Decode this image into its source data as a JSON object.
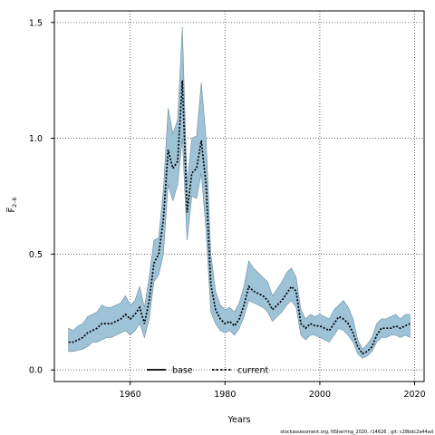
{
  "chart_data": {
    "type": "area",
    "xlabel": "Years",
    "ylabel": "F̅",
    "ylabel_subscript": "2–6",
    "credit": "stockassessment.org, NSherring_2020, r14626 , git: c28bdc2a44ad",
    "xlim": [
      1944,
      2022
    ],
    "ylim": [
      -0.05,
      1.55
    ],
    "x_ticks": [
      1960,
      1980,
      2000,
      2020
    ],
    "y_ticks": [
      0.0,
      0.5,
      1.0,
      1.5
    ],
    "y_tick_labels": [
      "0.0",
      "0.5",
      "1.0",
      "1.5"
    ],
    "grid": true,
    "band_color": "#9ec2d6",
    "band_edge_color": "#6a8ea3",
    "legend": {
      "placement": "bottom-center",
      "entries": [
        {
          "label": "base",
          "style": "solid"
        },
        {
          "label": "current",
          "style": "dashed"
        }
      ]
    },
    "x": [
      1947,
      1948,
      1949,
      1950,
      1951,
      1952,
      1953,
      1954,
      1955,
      1956,
      1957,
      1958,
      1959,
      1960,
      1961,
      1962,
      1963,
      1964,
      1965,
      1966,
      1967,
      1968,
      1969,
      1970,
      1971,
      1972,
      1973,
      1974,
      1975,
      1976,
      1977,
      1978,
      1979,
      1980,
      1981,
      1982,
      1983,
      1984,
      1985,
      1986,
      1987,
      1988,
      1989,
      1990,
      1991,
      1992,
      1993,
      1994,
      1995,
      1996,
      1997,
      1998,
      1999,
      2000,
      2001,
      2002,
      2003,
      2004,
      2005,
      2006,
      2007,
      2008,
      2009,
      2010,
      2011,
      2012,
      2013,
      2014,
      2015,
      2016,
      2017,
      2018,
      2019
    ],
    "series": [
      {
        "name": "current",
        "values": [
          0.12,
          0.12,
          0.13,
          0.14,
          0.16,
          0.17,
          0.18,
          0.2,
          0.2,
          0.2,
          0.21,
          0.22,
          0.24,
          0.22,
          0.24,
          0.27,
          0.2,
          0.3,
          0.46,
          0.5,
          0.65,
          0.95,
          0.87,
          0.9,
          1.25,
          0.68,
          0.85,
          0.87,
          0.99,
          0.8,
          0.37,
          0.26,
          0.22,
          0.2,
          0.21,
          0.19,
          0.22,
          0.28,
          0.36,
          0.34,
          0.33,
          0.32,
          0.3,
          0.26,
          0.28,
          0.3,
          0.33,
          0.36,
          0.34,
          0.2,
          0.18,
          0.2,
          0.19,
          0.19,
          0.18,
          0.17,
          0.2,
          0.23,
          0.22,
          0.2,
          0.16,
          0.1,
          0.07,
          0.08,
          0.1,
          0.15,
          0.18,
          0.18,
          0.18,
          0.19,
          0.18,
          0.19,
          0.2
        ]
      }
    ],
    "band": {
      "lower": [
        0.08,
        0.08,
        0.085,
        0.09,
        0.1,
        0.12,
        0.12,
        0.13,
        0.14,
        0.14,
        0.15,
        0.16,
        0.17,
        0.15,
        0.17,
        0.2,
        0.14,
        0.22,
        0.38,
        0.41,
        0.5,
        0.8,
        0.73,
        0.8,
        1.0,
        0.56,
        0.75,
        0.74,
        0.85,
        0.6,
        0.25,
        0.2,
        0.17,
        0.16,
        0.17,
        0.15,
        0.18,
        0.23,
        0.3,
        0.29,
        0.28,
        0.27,
        0.25,
        0.21,
        0.23,
        0.25,
        0.28,
        0.3,
        0.27,
        0.15,
        0.13,
        0.15,
        0.15,
        0.14,
        0.13,
        0.12,
        0.15,
        0.18,
        0.17,
        0.15,
        0.12,
        0.07,
        0.05,
        0.06,
        0.08,
        0.12,
        0.14,
        0.14,
        0.15,
        0.15,
        0.14,
        0.15,
        0.14
      ],
      "upper": [
        0.18,
        0.17,
        0.19,
        0.2,
        0.23,
        0.24,
        0.25,
        0.28,
        0.27,
        0.27,
        0.28,
        0.29,
        0.32,
        0.28,
        0.3,
        0.36,
        0.27,
        0.4,
        0.56,
        0.57,
        0.78,
        1.13,
        1.02,
        1.08,
        1.48,
        0.8,
        1.0,
        1.01,
        1.24,
        1.0,
        0.5,
        0.34,
        0.28,
        0.26,
        0.27,
        0.25,
        0.29,
        0.36,
        0.47,
        0.44,
        0.42,
        0.4,
        0.38,
        0.32,
        0.35,
        0.38,
        0.42,
        0.44,
        0.4,
        0.26,
        0.22,
        0.24,
        0.23,
        0.24,
        0.23,
        0.22,
        0.26,
        0.28,
        0.3,
        0.27,
        0.22,
        0.13,
        0.09,
        0.11,
        0.14,
        0.2,
        0.22,
        0.22,
        0.23,
        0.24,
        0.22,
        0.24,
        0.24
      ]
    }
  }
}
